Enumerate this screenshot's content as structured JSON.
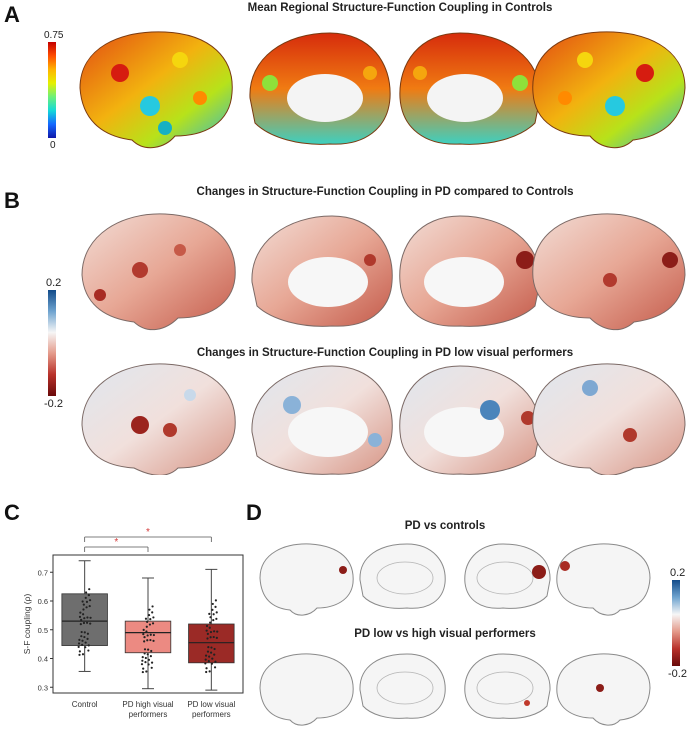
{
  "panels": {
    "a": {
      "letter": "A",
      "title": "Mean Regional Structure-Function Coupling in Controls",
      "colorbar": {
        "max": "0.75",
        "min": "0"
      }
    },
    "b": {
      "letter": "B",
      "title_top": "Changes in Structure-Function Coupling in PD compared to Controls",
      "title_bottom": "Changes in Structure-Function Coupling in PD low visual performers",
      "colorbar": {
        "max": "0.2",
        "min": "-0.2"
      }
    },
    "c": {
      "letter": "C"
    },
    "d": {
      "letter": "D",
      "title_top": "PD vs controls",
      "title_bottom": "PD low vs high visual performers",
      "colorbar": {
        "max": "0.2",
        "min": "-0.2"
      }
    }
  },
  "chart_data": {
    "type": "box",
    "ylabel": "S-F coupling (ρ)",
    "ylim": [
      0.28,
      0.76
    ],
    "yticks": [
      "0.3",
      "0.4",
      "0.5",
      "0.6",
      "0.7"
    ],
    "categories": [
      "Control",
      "PD high visual performers",
      "PD low visual performers"
    ],
    "category_lines": [
      [
        "Control"
      ],
      [
        "PD high visual",
        "performers"
      ],
      [
        "PD low visual",
        "performers"
      ]
    ],
    "boxes": [
      {
        "name": "Control",
        "q1": 0.445,
        "median": 0.53,
        "q3": 0.625,
        "whisker_low": 0.355,
        "whisker_high": 0.74,
        "color": "#6e6e6e"
      },
      {
        "name": "PD high visual performers",
        "q1": 0.42,
        "median": 0.49,
        "q3": 0.53,
        "whisker_low": 0.295,
        "whisker_high": 0.68,
        "color": "#ec8a82"
      },
      {
        "name": "PD low visual performers",
        "q1": 0.385,
        "median": 0.455,
        "q3": 0.52,
        "whisker_low": 0.29,
        "whisker_high": 0.71,
        "color": "#9b2a26"
      }
    ],
    "significance": [
      {
        "from": "Control",
        "to": "PD high visual performers",
        "label": "*"
      },
      {
        "from": "Control",
        "to": "PD low visual performers",
        "label": "*"
      }
    ]
  }
}
